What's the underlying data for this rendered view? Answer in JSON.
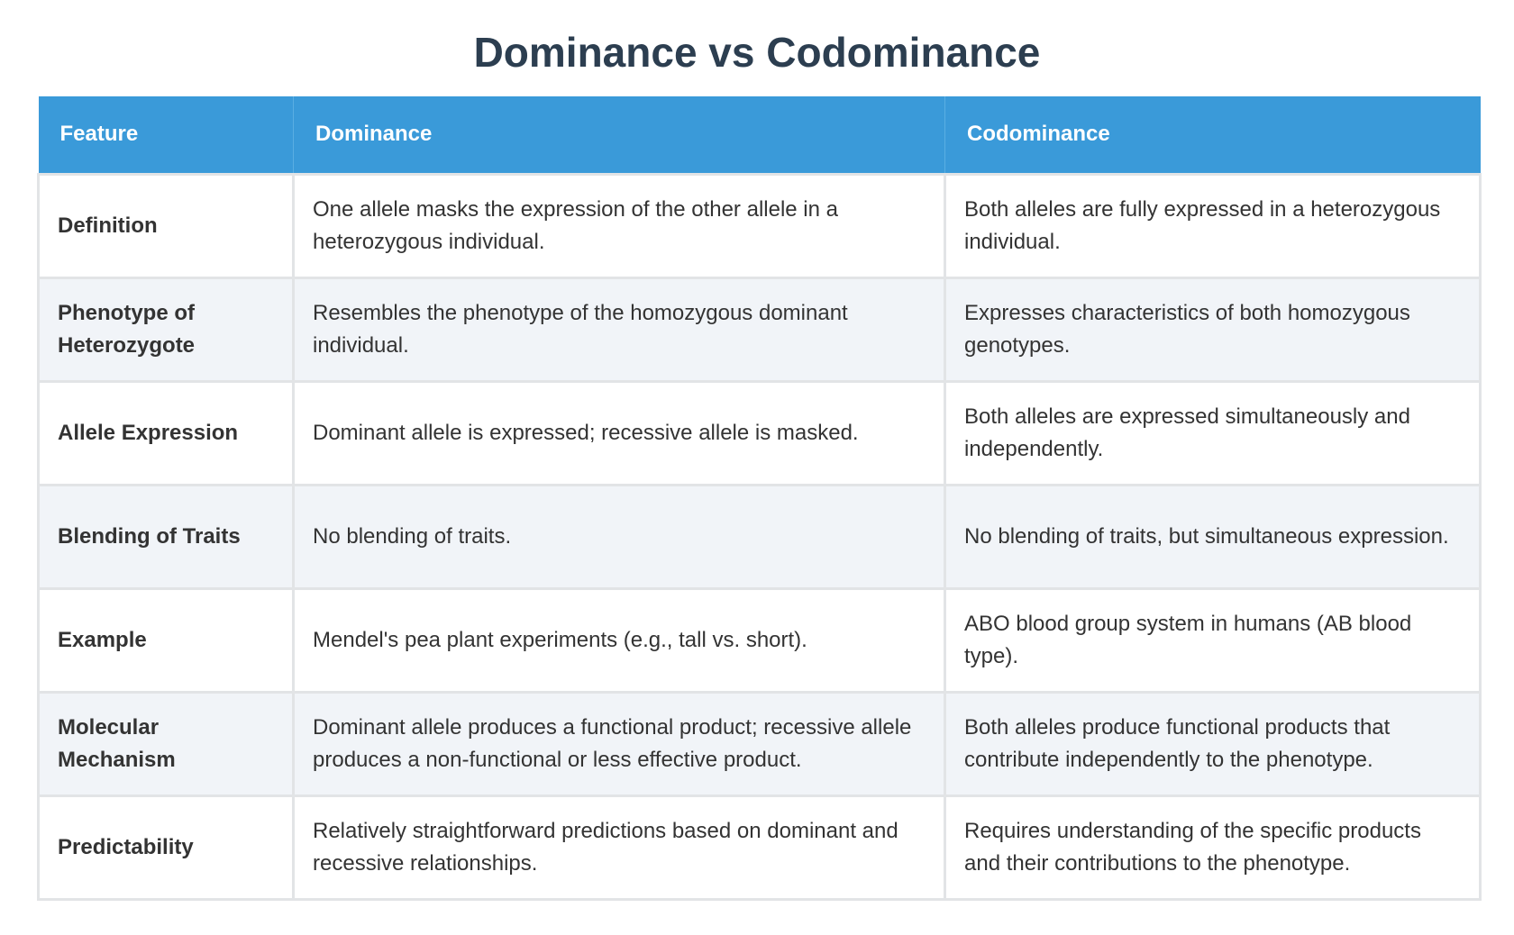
{
  "title": "Dominance vs Codominance",
  "headers": {
    "feature": "Feature",
    "dominance": "Dominance",
    "codominance": "Codominance"
  },
  "rows": [
    {
      "feature": "Definition",
      "dominance": "One allele masks the expression of the other allele in a heterozygous individual.",
      "codominance": "Both alleles are fully expressed in a heterozygous individual."
    },
    {
      "feature": "Phenotype of Heterozygote",
      "dominance": "Resembles the phenotype of the homozygous dominant individual.",
      "codominance": "Expresses characteristics of both homozygous genotypes."
    },
    {
      "feature": "Allele Expression",
      "dominance": "Dominant allele is expressed; recessive allele is masked.",
      "codominance": "Both alleles are expressed simultaneously and independently."
    },
    {
      "feature": "Blending of Traits",
      "dominance": "No blending of traits.",
      "codominance": "No blending of traits, but simultaneous expression."
    },
    {
      "feature": "Example",
      "dominance": "Mendel's pea plant experiments (e.g., tall vs. short).",
      "codominance": "ABO blood group system in humans (AB blood type)."
    },
    {
      "feature": "Molecular Mechanism",
      "dominance": "Dominant allele produces a functional product; recessive allele produces a non-functional or less effective product.",
      "codominance": "Both alleles produce functional products that contribute independently to the phenotype."
    },
    {
      "feature": "Predictability",
      "dominance": "Relatively straightforward predictions based on dominant and recessive relationships.",
      "codominance": "Requires understanding of the specific products and their contributions to the phenotype."
    }
  ],
  "colors": {
    "title": "#2c3e50",
    "header_bg": "#3a9ad9",
    "header_text": "#ffffff",
    "row_alt_bg": "#f1f4f8",
    "border": "#e2e4e6"
  }
}
